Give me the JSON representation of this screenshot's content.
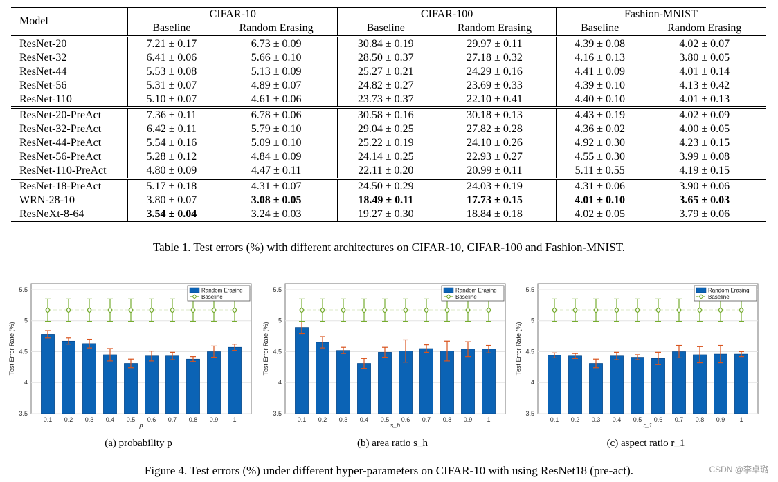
{
  "table": {
    "model_header": "Model",
    "datasets": [
      "CIFAR-10",
      "CIFAR-100",
      "Fashion-MNIST"
    ],
    "sub_headers": [
      "Baseline",
      "Random Erasing"
    ],
    "groups": [
      [
        {
          "model": "ResNet-20",
          "values": [
            "7.21 ± 0.17",
            "6.73 ± 0.09",
            "30.84 ± 0.19",
            "29.97 ± 0.11",
            "4.39 ± 0.08",
            "4.02 ± 0.07"
          ]
        },
        {
          "model": "ResNet-32",
          "values": [
            "6.41 ± 0.06",
            "5.66 ± 0.10",
            "28.50 ± 0.37",
            "27.18 ± 0.32",
            "4.16 ± 0.13",
            "3.80 ± 0.05"
          ]
        },
        {
          "model": "ResNet-44",
          "values": [
            "5.53 ± 0.08",
            "5.13 ± 0.09",
            "25.27 ± 0.21",
            "24.29 ± 0.16",
            "4.41 ± 0.09",
            "4.01 ± 0.14"
          ]
        },
        {
          "model": "ResNet-56",
          "values": [
            "5.31 ± 0.07",
            "4.89 ± 0.07",
            "24.82 ± 0.27",
            "23.69 ± 0.33",
            "4.39 ± 0.10",
            "4.13 ± 0.42"
          ]
        },
        {
          "model": "ResNet-110",
          "values": [
            "5.10 ± 0.07",
            "4.61 ± 0.06",
            "23.73 ± 0.37",
            "22.10 ± 0.41",
            "4.40 ± 0.10",
            "4.01 ± 0.13"
          ]
        }
      ],
      [
        {
          "model": "ResNet-20-PreAct",
          "values": [
            "7.36 ± 0.11",
            "6.78 ± 0.06",
            "30.58 ± 0.16",
            "30.18 ± 0.13",
            "4.43 ± 0.19",
            "4.02 ± 0.09"
          ]
        },
        {
          "model": "ResNet-32-PreAct",
          "values": [
            "6.42 ± 0.11",
            "5.79 ± 0.10",
            "29.04 ± 0.25",
            "27.82 ± 0.28",
            "4.36 ± 0.02",
            "4.00 ± 0.05"
          ]
        },
        {
          "model": "ResNet-44-PreAct",
          "values": [
            "5.54 ± 0.16",
            "5.09 ± 0.10",
            "25.22 ± 0.19",
            "24.10 ± 0.26",
            "4.92 ± 0.30",
            "4.23 ± 0.15"
          ]
        },
        {
          "model": "ResNet-56-PreAct",
          "values": [
            "5.28 ± 0.12",
            "4.84 ± 0.09",
            "24.14 ± 0.25",
            "22.93 ± 0.27",
            "4.55 ± 0.30",
            "3.99 ± 0.08"
          ]
        },
        {
          "model": "ResNet-110-PreAct",
          "values": [
            "4.80 ± 0.09",
            "4.47 ± 0.11",
            "22.11 ± 0.20",
            "20.99 ± 0.11",
            "5.11 ± 0.55",
            "4.19 ± 0.15"
          ]
        }
      ],
      [
        {
          "model": "ResNet-18-PreAct",
          "values": [
            "5.17 ± 0.18",
            "4.31 ± 0.07",
            "24.50 ± 0.29",
            "24.03 ± 0.19",
            "4.31 ± 0.06",
            "3.90 ± 0.06"
          ]
        },
        {
          "model": "WRN-28-10",
          "values": [
            "3.80 ± 0.07",
            "3.08 ± 0.05",
            "18.49 ± 0.11",
            "17.73 ± 0.15",
            "4.01 ± 0.10",
            "3.65 ± 0.03"
          ],
          "bold": [
            1,
            2,
            3,
            4,
            5
          ]
        },
        {
          "model": "ResNeXt-8-64",
          "values": [
            "3.54 ± 0.04",
            "3.24 ± 0.03",
            "19.27 ± 0.30",
            "18.84 ± 0.18",
            "4.02 ± 0.05",
            "3.79 ± 0.06"
          ],
          "bold": [
            0
          ]
        }
      ]
    ],
    "caption": "Table 1. Test errors (%) with different architectures on CIFAR-10, CIFAR-100 and Fashion-MNIST."
  },
  "chart_data": [
    {
      "type": "bar",
      "subcaption": "(a)  probability p",
      "xlabel": "p",
      "ylabel": "Test Error Rate (%)",
      "ylim": [
        3.5,
        5.6
      ],
      "yticks": [
        "3.5",
        "4",
        "4.5",
        "5",
        "5.5"
      ],
      "categories": [
        "0.1",
        "0.2",
        "0.3",
        "0.4",
        "0.5",
        "0.6",
        "0.7",
        "0.8",
        "0.9",
        "1"
      ],
      "series": [
        {
          "name": "Random Erasing",
          "values": [
            4.78,
            4.67,
            4.63,
            4.45,
            4.31,
            4.43,
            4.43,
            4.38,
            4.5,
            4.57
          ],
          "errors": [
            0.06,
            0.05,
            0.07,
            0.1,
            0.07,
            0.08,
            0.06,
            0.04,
            0.09,
            0.05
          ]
        },
        {
          "name": "Baseline",
          "values": [
            5.17,
            5.17,
            5.17,
            5.17,
            5.17,
            5.17,
            5.17,
            5.17,
            5.17,
            5.17
          ],
          "errors": [
            0.18,
            0.18,
            0.18,
            0.18,
            0.18,
            0.18,
            0.18,
            0.18,
            0.18,
            0.18
          ]
        }
      ],
      "colors": {
        "bar": "#0b63b5",
        "error": "#d9541e",
        "baseline": "#76ac2f"
      }
    },
    {
      "type": "bar",
      "subcaption": "(b)  area ratio s_h",
      "xlabel": "s_h",
      "ylabel": "Test Error Rate (%)",
      "ylim": [
        3.5,
        5.6
      ],
      "yticks": [
        "3.5",
        "4",
        "4.5",
        "5",
        "5.5"
      ],
      "categories": [
        "0.1",
        "0.2",
        "0.3",
        "0.4",
        "0.5",
        "0.6",
        "0.7",
        "0.8",
        "0.9",
        "1"
      ],
      "series": [
        {
          "name": "Random Erasing",
          "values": [
            4.89,
            4.65,
            4.52,
            4.31,
            4.49,
            4.51,
            4.55,
            4.51,
            4.54,
            4.54
          ],
          "errors": [
            0.1,
            0.09,
            0.05,
            0.08,
            0.08,
            0.18,
            0.06,
            0.16,
            0.12,
            0.06
          ]
        },
        {
          "name": "Baseline",
          "values": [
            5.17,
            5.17,
            5.17,
            5.17,
            5.17,
            5.17,
            5.17,
            5.17,
            5.17,
            5.17
          ],
          "errors": [
            0.18,
            0.18,
            0.18,
            0.18,
            0.18,
            0.18,
            0.18,
            0.18,
            0.18,
            0.18
          ]
        }
      ],
      "colors": {
        "bar": "#0b63b5",
        "error": "#d9541e",
        "baseline": "#76ac2f"
      }
    },
    {
      "type": "bar",
      "subcaption": "(c)  aspect ratio r_1",
      "xlabel": "r_1",
      "ylabel": "Test Error Rate (%)",
      "ylim": [
        3.5,
        5.6
      ],
      "yticks": [
        "3.5",
        "4",
        "4.5",
        "5",
        "5.5"
      ],
      "categories": [
        "0.1",
        "0.2",
        "0.3",
        "0.4",
        "0.5",
        "0.6",
        "0.7",
        "0.8",
        "0.9",
        "1"
      ],
      "series": [
        {
          "name": "Random Erasing",
          "values": [
            4.44,
            4.43,
            4.31,
            4.43,
            4.41,
            4.39,
            4.5,
            4.45,
            4.46,
            4.46
          ],
          "errors": [
            0.04,
            0.04,
            0.07,
            0.06,
            0.04,
            0.1,
            0.1,
            0.13,
            0.14,
            0.04
          ]
        },
        {
          "name": "Baseline",
          "values": [
            5.17,
            5.17,
            5.17,
            5.17,
            5.17,
            5.17,
            5.17,
            5.17,
            5.17,
            5.17
          ],
          "errors": [
            0.18,
            0.18,
            0.18,
            0.18,
            0.18,
            0.18,
            0.18,
            0.18,
            0.18,
            0.18
          ]
        }
      ],
      "colors": {
        "bar": "#0b63b5",
        "error": "#d9541e",
        "baseline": "#76ac2f"
      }
    }
  ],
  "figure_caption": "Figure 4. Test errors (%) under different hyper-parameters on CIFAR-10 with using ResNet18 (pre-act).",
  "watermark": "CSDN @李卓璐"
}
